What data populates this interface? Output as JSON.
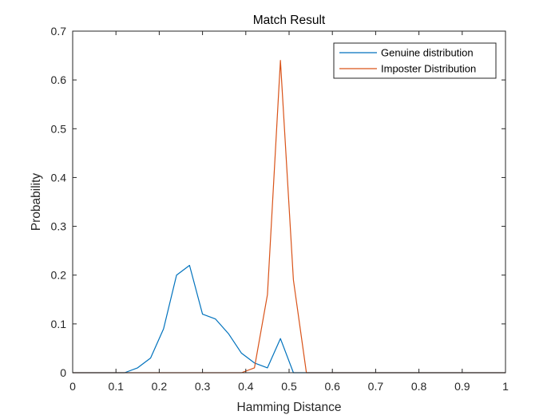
{
  "chart_data": {
    "type": "line",
    "title": "Match Result",
    "xlabel": "Hamming Distance",
    "ylabel": "Probability",
    "xlim": [
      0,
      1
    ],
    "ylim": [
      0,
      0.7
    ],
    "xticks": [
      0,
      0.1,
      0.2,
      0.3,
      0.4,
      0.5,
      0.6,
      0.7,
      0.8,
      0.9,
      1
    ],
    "xtick_labels": [
      "0",
      "0.1",
      "0.2",
      "0.3",
      "0.4",
      "0.5",
      "0.6",
      "0.7",
      "0.8",
      "0.9",
      "1"
    ],
    "yticks": [
      0,
      0.1,
      0.2,
      0.3,
      0.4,
      0.5,
      0.6,
      0.7
    ],
    "ytick_labels": [
      "0",
      "0.1",
      "0.2",
      "0.3",
      "0.4",
      "0.5",
      "0.6",
      "0.7"
    ],
    "grid": false,
    "legend_position": "top-right",
    "series": [
      {
        "name": "Genuine distribution",
        "color": "#0072BD",
        "x": [
          0,
          0.12,
          0.15,
          0.18,
          0.21,
          0.24,
          0.27,
          0.3,
          0.33,
          0.36,
          0.39,
          0.42,
          0.45,
          0.48,
          0.51,
          0.54,
          0.6,
          1
        ],
        "y": [
          0,
          0,
          0.01,
          0.03,
          0.09,
          0.2,
          0.22,
          0.12,
          0.11,
          0.08,
          0.04,
          0.02,
          0.01,
          0.07,
          0,
          0,
          0,
          0
        ]
      },
      {
        "name": "Imposter Distribution",
        "color": "#D95319",
        "x": [
          0,
          0.39,
          0.42,
          0.45,
          0.48,
          0.51,
          0.54,
          0.6,
          1
        ],
        "y": [
          0,
          0,
          0.01,
          0.16,
          0.64,
          0.19,
          0,
          0,
          0
        ]
      }
    ]
  }
}
